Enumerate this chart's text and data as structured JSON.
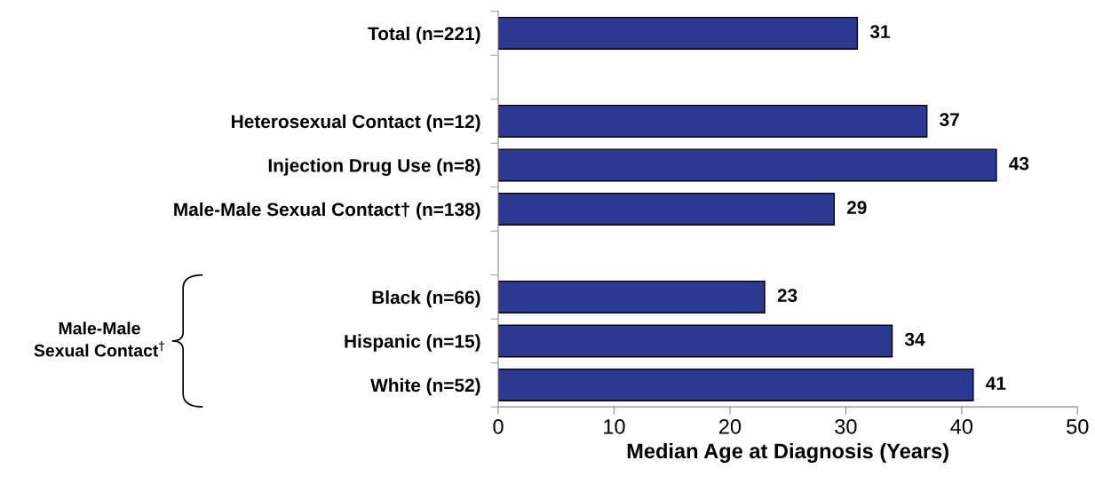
{
  "chart_data": {
    "type": "bar",
    "orientation": "horizontal",
    "xlabel": "Median Age at Diagnosis (Years)",
    "categories": [
      "Total (n=221)",
      null,
      "Heterosexual Contact (n=12)",
      "Injection Drug Use (n=8)",
      "Male-Male Sexual Contact† (n=138)",
      null,
      "Black (n=66)",
      "Hispanic (n=15)",
      "White (n=52)"
    ],
    "values": [
      31,
      null,
      37,
      43,
      29,
      null,
      23,
      34,
      41
    ],
    "color": "#2b3990",
    "data_labels": true,
    "xlim": [
      0,
      50
    ],
    "xticks": [
      0,
      10,
      20,
      30,
      40,
      50
    ],
    "grid": false,
    "annotations": [
      "Male-Male\nSexual Contact$^{†}$"
    ]
  }
}
